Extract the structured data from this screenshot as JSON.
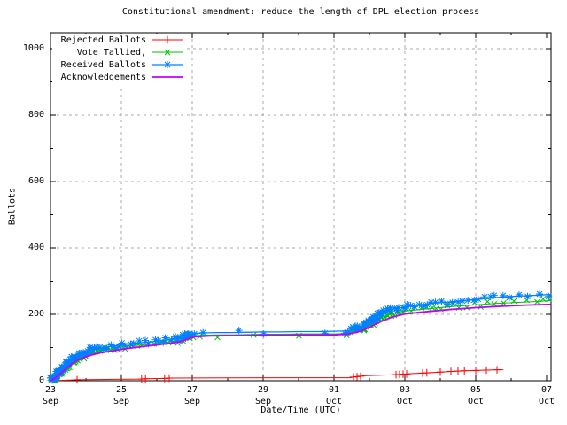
{
  "chart_data": {
    "type": "line",
    "title": "Constitutional amendment: reduce the length of DPL election process",
    "xlabel": "Date/Time (UTC)",
    "ylabel": "Ballots",
    "x_unit": "days since 23 Sep 00:00 UTC",
    "xlim": [
      0,
      14.125
    ],
    "ylim": [
      0,
      1048
    ],
    "grid": true,
    "legend_position": "top-left",
    "background": "#ffffff",
    "border_color": "#000000",
    "grid_color": "#aaaaaa",
    "x_ticks": [
      {
        "day": 0,
        "line1": "23",
        "line2": "Sep"
      },
      {
        "day": 2,
        "line1": "25",
        "line2": "Sep"
      },
      {
        "day": 4,
        "line1": "27",
        "line2": "Sep"
      },
      {
        "day": 6,
        "line1": "29",
        "line2": "Sep"
      },
      {
        "day": 8,
        "line1": "01",
        "line2": "Oct"
      },
      {
        "day": 10,
        "line1": "03",
        "line2": "Oct"
      },
      {
        "day": 12,
        "line1": "05",
        "line2": "Oct"
      },
      {
        "day": 14,
        "line1": "07",
        "line2": "Oct"
      }
    ],
    "x_minor_days": [
      1,
      3,
      5,
      7,
      9,
      11,
      13
    ],
    "y_ticks": [
      {
        "value": 0,
        "label": "0"
      },
      {
        "value": 200,
        "label": "200"
      },
      {
        "value": 400,
        "label": "400"
      },
      {
        "value": 600,
        "label": "600"
      },
      {
        "value": 800,
        "label": "800"
      },
      {
        "value": 1000,
        "label": "1000"
      }
    ],
    "y_minor_values": [
      100,
      300,
      500,
      700,
      900
    ],
    "series": [
      {
        "name": "rejected-ballots",
        "label": "Rejected Ballots",
        "color": "#ff0000",
        "marker": "plus",
        "line_width": 1,
        "points": [
          [
            0,
            0
          ],
          [
            0.55,
            2
          ],
          [
            0.75,
            3
          ],
          [
            1.6,
            4
          ],
          [
            2.55,
            5
          ],
          [
            2.7,
            6
          ],
          [
            3.2,
            7
          ],
          [
            3.4,
            8
          ],
          [
            6.6,
            9
          ],
          [
            8.45,
            9
          ],
          [
            8.55,
            11
          ],
          [
            8.7,
            13
          ],
          [
            8.85,
            15
          ],
          [
            9.1,
            16
          ],
          [
            9.4,
            17
          ],
          [
            9.7,
            18
          ],
          [
            9.85,
            19
          ],
          [
            10,
            20
          ],
          [
            10.1,
            21
          ],
          [
            10.5,
            23
          ],
          [
            10.65,
            24
          ],
          [
            11,
            26
          ],
          [
            11.3,
            28
          ],
          [
            11.5,
            29
          ],
          [
            11.7,
            30
          ],
          [
            12,
            31
          ],
          [
            12.3,
            32
          ],
          [
            12.6,
            33
          ],
          [
            12.78,
            33
          ]
        ],
        "marker_days": [
          0.75,
          2.57,
          2.68,
          3.22,
          3.35,
          8.55,
          8.65,
          8.75,
          9.75,
          9.85,
          9.95,
          10.05,
          10.5,
          10.62,
          11.0,
          11.3,
          11.5,
          11.68,
          12.0,
          12.3,
          12.6
        ]
      },
      {
        "name": "vote-tallied",
        "label": "Vote Tallied,",
        "color": "#00c000",
        "marker": "cross",
        "line_width": 1,
        "marker_every_ballots": 1.5,
        "jitter": 3,
        "points": [
          [
            0,
            0
          ],
          [
            0.1,
            6
          ],
          [
            0.2,
            16
          ],
          [
            0.3,
            27
          ],
          [
            0.45,
            41
          ],
          [
            0.6,
            54
          ],
          [
            0.72,
            63
          ],
          [
            0.85,
            70
          ],
          [
            1,
            78
          ],
          [
            1.2,
            86
          ],
          [
            1.45,
            92
          ],
          [
            1.7,
            96
          ],
          [
            2,
            101
          ],
          [
            2.3,
            105
          ],
          [
            2.6,
            108
          ],
          [
            2.9,
            111
          ],
          [
            3.2,
            115
          ],
          [
            3.5,
            119
          ],
          [
            3.7,
            122
          ],
          [
            3.85,
            129
          ],
          [
            4,
            135
          ],
          [
            4.3,
            137
          ],
          [
            4.7,
            138
          ],
          [
            5.1,
            138
          ],
          [
            5.5,
            139
          ],
          [
            6,
            140
          ],
          [
            6.5,
            140
          ],
          [
            7,
            141
          ],
          [
            7.5,
            141
          ],
          [
            8,
            141
          ],
          [
            8.3,
            142
          ],
          [
            8.5,
            146
          ],
          [
            8.65,
            150
          ],
          [
            8.8,
            157
          ],
          [
            9,
            169
          ],
          [
            9.15,
            180
          ],
          [
            9.3,
            189
          ],
          [
            9.5,
            198
          ],
          [
            9.7,
            204
          ],
          [
            9.9,
            208
          ],
          [
            10.1,
            211
          ],
          [
            10.4,
            214
          ],
          [
            10.7,
            217
          ],
          [
            11,
            220
          ],
          [
            11.4,
            224
          ],
          [
            11.8,
            227
          ],
          [
            12.2,
            230
          ],
          [
            12.6,
            233
          ],
          [
            13,
            235
          ],
          [
            13.4,
            237
          ],
          [
            13.8,
            239
          ],
          [
            14.12,
            242
          ]
        ]
      },
      {
        "name": "received-ballots",
        "label": "Received Ballots",
        "color": "#0080ff",
        "marker": "asterisk",
        "line_width": 1.3,
        "marker_every_ballots": 1.5,
        "jitter": 3,
        "points": [
          [
            0,
            0
          ],
          [
            0.08,
            8
          ],
          [
            0.17,
            20
          ],
          [
            0.25,
            30
          ],
          [
            0.33,
            38
          ],
          [
            0.42,
            48
          ],
          [
            0.5,
            58
          ],
          [
            0.58,
            66
          ],
          [
            0.67,
            72
          ],
          [
            0.78,
            78
          ],
          [
            0.9,
            84
          ],
          [
            1,
            88
          ],
          [
            1.2,
            95
          ],
          [
            1.45,
            100
          ],
          [
            1.7,
            103
          ],
          [
            2,
            108
          ],
          [
            2.3,
            112
          ],
          [
            2.6,
            115
          ],
          [
            2.9,
            118
          ],
          [
            3.2,
            122
          ],
          [
            3.5,
            126
          ],
          [
            3.7,
            129
          ],
          [
            3.85,
            136
          ],
          [
            4,
            142
          ],
          [
            4.3,
            144
          ],
          [
            4.7,
            145
          ],
          [
            5.1,
            145
          ],
          [
            5.5,
            146
          ],
          [
            6,
            147
          ],
          [
            6.5,
            147
          ],
          [
            7,
            148
          ],
          [
            7.5,
            148
          ],
          [
            8,
            149
          ],
          [
            8.3,
            150
          ],
          [
            8.5,
            153
          ],
          [
            8.65,
            158
          ],
          [
            8.8,
            165
          ],
          [
            9,
            178
          ],
          [
            9.15,
            190
          ],
          [
            9.3,
            200
          ],
          [
            9.5,
            210
          ],
          [
            9.7,
            216
          ],
          [
            9.9,
            220
          ],
          [
            10.1,
            224
          ],
          [
            10.4,
            228
          ],
          [
            10.7,
            232
          ],
          [
            11,
            235
          ],
          [
            11.4,
            239
          ],
          [
            11.8,
            243
          ],
          [
            12.2,
            247
          ],
          [
            12.6,
            251
          ],
          [
            13,
            254
          ],
          [
            13.4,
            256
          ],
          [
            13.8,
            258
          ],
          [
            14.12,
            260
          ]
        ]
      },
      {
        "name": "acknowledgements",
        "label": "Acknowledgements",
        "color": "#c000ff",
        "marker": "none",
        "line_width": 1.8,
        "points": [
          [
            0,
            0
          ],
          [
            0.15,
            10
          ],
          [
            0.3,
            24
          ],
          [
            0.5,
            42
          ],
          [
            0.7,
            58
          ],
          [
            0.9,
            68
          ],
          [
            1.1,
            76
          ],
          [
            1.4,
            84
          ],
          [
            1.8,
            91
          ],
          [
            2.2,
            98
          ],
          [
            2.6,
            103
          ],
          [
            3,
            108
          ],
          [
            3.4,
            113
          ],
          [
            3.7,
            118
          ],
          [
            3.9,
            127
          ],
          [
            4.05,
            132
          ],
          [
            4.5,
            135
          ],
          [
            5,
            136
          ],
          [
            5.5,
            136
          ],
          [
            6,
            137
          ],
          [
            6.5,
            137
          ],
          [
            7,
            138
          ],
          [
            7.5,
            138
          ],
          [
            8,
            138
          ],
          [
            8.4,
            141
          ],
          [
            8.6,
            145
          ],
          [
            8.8,
            151
          ],
          [
            9,
            161
          ],
          [
            9.2,
            172
          ],
          [
            9.4,
            182
          ],
          [
            9.6,
            190
          ],
          [
            9.8,
            196
          ],
          [
            10,
            201
          ],
          [
            10.4,
            206
          ],
          [
            10.8,
            210
          ],
          [
            11.2,
            214
          ],
          [
            11.6,
            217
          ],
          [
            12,
            220
          ],
          [
            12.5,
            223
          ],
          [
            13,
            226
          ],
          [
            13.5,
            228
          ],
          [
            14.12,
            230
          ]
        ]
      }
    ]
  }
}
